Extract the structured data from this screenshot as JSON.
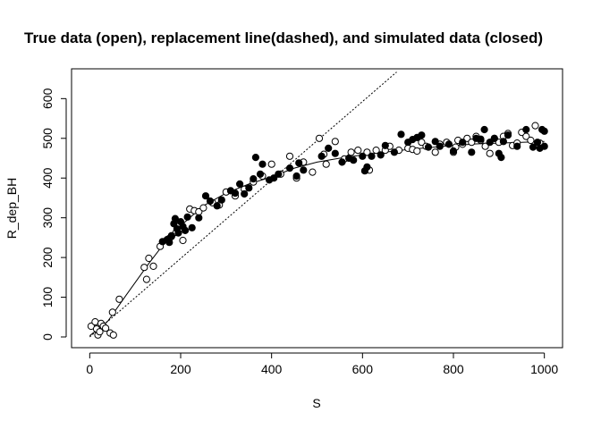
{
  "chart_data": {
    "type": "scatter",
    "title": "True data (open), replacement line(dashed), and simulated data (closed)",
    "xlabel": "S",
    "ylabel": "R_dep_BH",
    "xlim": [
      -40,
      1040
    ],
    "ylim": [
      -27,
      675
    ],
    "xticks": [
      0,
      200,
      400,
      600,
      800,
      1000
    ],
    "yticks": [
      0,
      100,
      200,
      300,
      400,
      500,
      600
    ],
    "grid": false,
    "series": [
      {
        "style": "open",
        "points": [
          [
            3,
            27
          ],
          [
            12,
            38
          ],
          [
            15,
            20
          ],
          [
            18,
            5
          ],
          [
            22,
            13
          ],
          [
            25,
            34
          ],
          [
            30,
            27
          ],
          [
            35,
            22
          ],
          [
            45,
            10
          ],
          [
            50,
            62
          ],
          [
            52,
            5
          ],
          [
            65,
            95
          ],
          [
            120,
            175
          ],
          [
            125,
            145
          ],
          [
            130,
            198
          ],
          [
            140,
            178
          ],
          [
            155,
            228
          ],
          [
            175,
            248
          ],
          [
            180,
            253
          ],
          [
            190,
            263
          ],
          [
            205,
            243
          ],
          [
            220,
            322
          ],
          [
            230,
            318
          ],
          [
            240,
            315
          ],
          [
            250,
            325
          ],
          [
            270,
            338
          ],
          [
            285,
            332
          ],
          [
            300,
            365
          ],
          [
            320,
            355
          ],
          [
            340,
            372
          ],
          [
            360,
            390
          ],
          [
            380,
            405
          ],
          [
            400,
            435
          ],
          [
            420,
            410
          ],
          [
            440,
            455
          ],
          [
            455,
            400
          ],
          [
            470,
            440
          ],
          [
            490,
            415
          ],
          [
            505,
            500
          ],
          [
            515,
            460
          ],
          [
            520,
            435
          ],
          [
            540,
            492
          ],
          [
            560,
            448
          ],
          [
            575,
            465
          ],
          [
            590,
            470
          ],
          [
            610,
            465
          ],
          [
            615,
            420
          ],
          [
            630,
            470
          ],
          [
            650,
            470
          ],
          [
            660,
            480
          ],
          [
            680,
            470
          ],
          [
            700,
            475
          ],
          [
            710,
            472
          ],
          [
            720,
            468
          ],
          [
            730,
            490
          ],
          [
            740,
            480
          ],
          [
            760,
            465
          ],
          [
            770,
            485
          ],
          [
            785,
            490
          ],
          [
            800,
            465
          ],
          [
            805,
            478
          ],
          [
            810,
            495
          ],
          [
            820,
            485
          ],
          [
            830,
            500
          ],
          [
            840,
            490
          ],
          [
            850,
            505
          ],
          [
            860,
            495
          ],
          [
            870,
            480
          ],
          [
            880,
            462
          ],
          [
            890,
            500
          ],
          [
            900,
            490
          ],
          [
            910,
            505
          ],
          [
            920,
            512
          ],
          [
            930,
            482
          ],
          [
            940,
            488
          ],
          [
            950,
            515
          ],
          [
            960,
            505
          ],
          [
            970,
            495
          ],
          [
            980,
            532
          ],
          [
            990,
            488
          ]
        ]
      },
      {
        "style": "closed",
        "points": [
          [
            160,
            240
          ],
          [
            170,
            245
          ],
          [
            175,
            238
          ],
          [
            180,
            255
          ],
          [
            185,
            285
          ],
          [
            188,
            298
          ],
          [
            192,
            272
          ],
          [
            195,
            262
          ],
          [
            200,
            290
          ],
          [
            205,
            278
          ],
          [
            210,
            268
          ],
          [
            215,
            302
          ],
          [
            225,
            275
          ],
          [
            240,
            300
          ],
          [
            255,
            355
          ],
          [
            265,
            342
          ],
          [
            280,
            330
          ],
          [
            290,
            345
          ],
          [
            310,
            368
          ],
          [
            320,
            362
          ],
          [
            330,
            385
          ],
          [
            340,
            360
          ],
          [
            350,
            375
          ],
          [
            360,
            398
          ],
          [
            365,
            452
          ],
          [
            375,
            410
          ],
          [
            380,
            435
          ],
          [
            395,
            395
          ],
          [
            405,
            400
          ],
          [
            415,
            410
          ],
          [
            440,
            425
          ],
          [
            455,
            405
          ],
          [
            460,
            438
          ],
          [
            470,
            420
          ],
          [
            510,
            455
          ],
          [
            525,
            475
          ],
          [
            540,
            462
          ],
          [
            555,
            440
          ],
          [
            570,
            450
          ],
          [
            580,
            445
          ],
          [
            600,
            455
          ],
          [
            605,
            418
          ],
          [
            610,
            428
          ],
          [
            620,
            455
          ],
          [
            640,
            458
          ],
          [
            650,
            482
          ],
          [
            670,
            465
          ],
          [
            685,
            510
          ],
          [
            700,
            490
          ],
          [
            710,
            497
          ],
          [
            720,
            502
          ],
          [
            730,
            508
          ],
          [
            745,
            478
          ],
          [
            760,
            492
          ],
          [
            770,
            480
          ],
          [
            790,
            485
          ],
          [
            800,
            468
          ],
          [
            820,
            490
          ],
          [
            840,
            465
          ],
          [
            850,
            500
          ],
          [
            860,
            498
          ],
          [
            868,
            522
          ],
          [
            880,
            490
          ],
          [
            890,
            500
          ],
          [
            900,
            462
          ],
          [
            905,
            452
          ],
          [
            910,
            492
          ],
          [
            920,
            508
          ],
          [
            940,
            480
          ],
          [
            960,
            522
          ],
          [
            975,
            478
          ],
          [
            985,
            490
          ],
          [
            990,
            475
          ],
          [
            995,
            522
          ],
          [
            1000,
            518
          ],
          [
            1000,
            480
          ]
        ]
      }
    ],
    "lines": [
      {
        "style": "solid",
        "points": [
          [
            0,
            3
          ],
          [
            40,
            40
          ],
          [
            80,
            105
          ],
          [
            130,
            185
          ],
          [
            170,
            245
          ],
          [
            200,
            280
          ],
          [
            250,
            330
          ],
          [
            300,
            362
          ],
          [
            350,
            385
          ],
          [
            400,
            403
          ],
          [
            450,
            425
          ],
          [
            500,
            440
          ],
          [
            550,
            450
          ],
          [
            600,
            458
          ],
          [
            650,
            465
          ],
          [
            700,
            472
          ],
          [
            750,
            477
          ],
          [
            800,
            482
          ],
          [
            850,
            486
          ],
          [
            900,
            488
          ],
          [
            950,
            490
          ],
          [
            1000,
            492
          ]
        ]
      },
      {
        "style": "dashed",
        "points": [
          [
            0,
            0
          ],
          [
            675,
            667
          ]
        ]
      }
    ]
  }
}
